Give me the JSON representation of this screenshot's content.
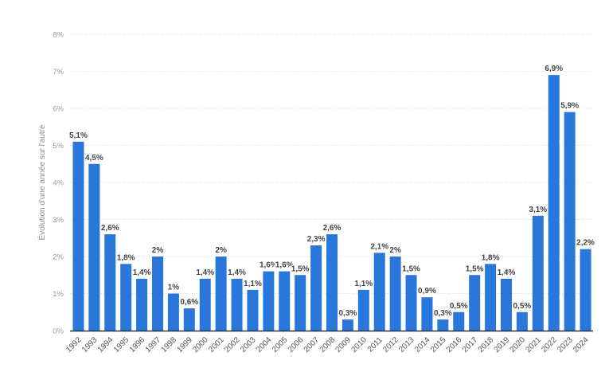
{
  "chart_data": {
    "type": "bar",
    "title": "",
    "xlabel": "",
    "ylabel": "Évolution d'une année sur l'autre",
    "ylim": [
      0,
      8
    ],
    "yticks": [
      "0%",
      "1%",
      "2%",
      "3%",
      "4%",
      "5%",
      "6%",
      "7%",
      "8%"
    ],
    "grid": true,
    "bar_color": "#2a77db",
    "categories": [
      "1992",
      "1993",
      "1994",
      "1995",
      "1996",
      "1997",
      "1998",
      "1999",
      "2000",
      "2001",
      "2002",
      "2003",
      "2004",
      "2005",
      "2006",
      "2007",
      "2008",
      "2009",
      "2010",
      "2011",
      "2012",
      "2013",
      "2014",
      "2015",
      "2016",
      "2017",
      "2018",
      "2019",
      "2020",
      "2021",
      "2022",
      "2023",
      "2024"
    ],
    "values": [
      5.1,
      4.5,
      2.6,
      1.8,
      1.4,
      2,
      1,
      0.6,
      1.4,
      2,
      1.4,
      1.1,
      1.6,
      1.6,
      1.5,
      2.3,
      2.6,
      0.3,
      1.1,
      2.1,
      2,
      1.5,
      0.9,
      0.3,
      0.5,
      1.5,
      1.8,
      1.4,
      0.5,
      3.1,
      6.9,
      5.9,
      2.2
    ],
    "labels": [
      "5,1%",
      "4,5%",
      "2,6%",
      "1,8%",
      "1,4%",
      "2%",
      "1%",
      "0,6%",
      "1,4%",
      "2%",
      "1,4%",
      "1,1%",
      "1,6%",
      "1,6%",
      "1,5%",
      "2,3%",
      "2,6%",
      "0,3%",
      "1,1%",
      "2,1%",
      "2%",
      "1,5%",
      "0,9%",
      "0,3%",
      "0,5%",
      "1,5%",
      "1,8%",
      "1,4%",
      "0,5%",
      "3,1%",
      "6,9%",
      "5,9%",
      "2,2%"
    ]
  }
}
